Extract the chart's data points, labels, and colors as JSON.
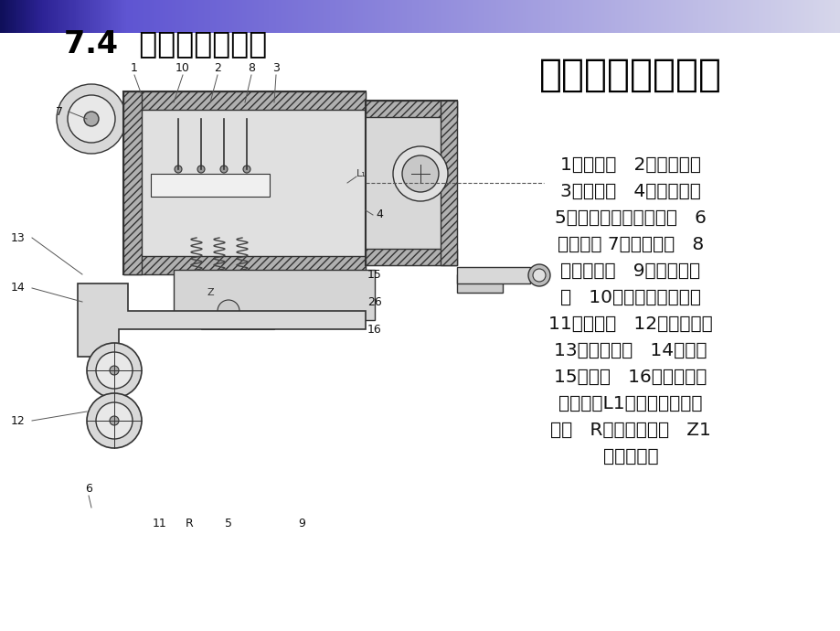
{
  "title_main": "7.4  单元制动机检修",
  "title_section": "一）单元制动简介",
  "description_lines": [
    "1－制动缸   2－制动活塞",
    "3－活塞杆   4－制动杠杆",
    "5－单向闸瓦间隙调整器   6",
    "－闸瓦托 7－闸瓦托吊   8",
    "－缓解弹簧   9－透气滤清",
    "器   10－闸瓦托复位弹簧",
    "11－推杆头   12－弹簧垫圈",
    "13－调整螺母   14－螺栓",
    "15－外体   16－闸瓦间隙",
    "调整器体L1－制动杠杆转动",
    "中心   R－齿轮啮合面   Z1",
    "－啮合锥面"
  ],
  "bg_color": "#ffffff",
  "title_main_color": "#000000",
  "title_section_color": "#000000",
  "desc_color": "#111111",
  "title_main_fontsize": 24,
  "title_section_fontsize": 30,
  "desc_fontsize": 14.5
}
